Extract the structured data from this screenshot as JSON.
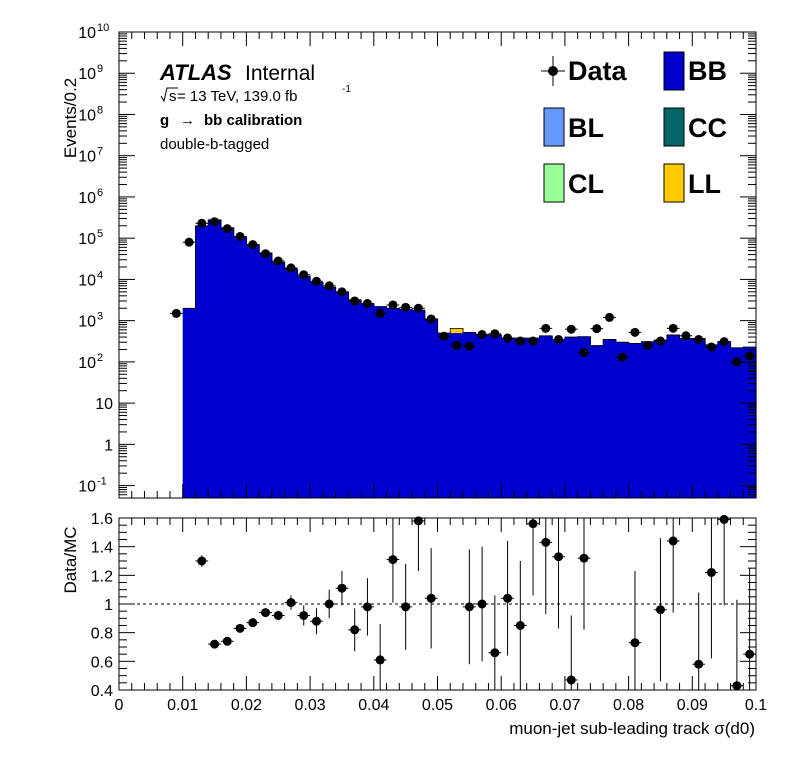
{
  "atlas": {
    "label": "ATLAS",
    "status": "Internal",
    "energy_sqrt": "s",
    "energy_text": " = 13 TeV, 139.0 fb",
    "energy_exp": "-1",
    "process_g": "g",
    "process_arrow": "→",
    "process_rest": "bb calibration",
    "selection": "double-b-tagged"
  },
  "colors": {
    "BB": "#0000cc",
    "BL": "#6699ff",
    "CC": "#006666",
    "CL": "#99ff99",
    "LL": "#ffcc00",
    "data": "#000000"
  },
  "chart_data": [
    {
      "type": "bar",
      "yscale": "log",
      "ylabel": "Events/0.2",
      "xlim": [
        0,
        0.1
      ],
      "ylim": [
        0.05,
        10000000000
      ],
      "y_tick_labels": [
        "10^-1",
        "1",
        "10",
        "10^2",
        "10^3",
        "10^4",
        "10^5",
        "10^6",
        "10^7",
        "10^8",
        "10^9",
        "10^10"
      ],
      "legend": {
        "placement": "top-right",
        "entries": [
          {
            "label": "Data",
            "style": "marker"
          },
          {
            "label": "BB",
            "style": "fill"
          },
          {
            "label": "BL",
            "style": "fill"
          },
          {
            "label": "CC",
            "style": "fill"
          },
          {
            "label": "CL",
            "style": "fill"
          },
          {
            "label": "LL",
            "style": "fill"
          }
        ]
      },
      "bin_width": 0.002,
      "x": [
        0.009,
        0.011,
        0.013,
        0.015,
        0.017,
        0.019,
        0.021,
        0.023,
        0.025,
        0.027,
        0.029,
        0.031,
        0.033,
        0.035,
        0.037,
        0.039,
        0.041,
        0.043,
        0.045,
        0.047,
        0.049,
        0.051,
        0.053,
        0.055,
        0.057,
        0.059,
        0.061,
        0.063,
        0.065,
        0.067,
        0.069,
        0.071,
        0.073,
        0.075,
        0.077,
        0.079,
        0.081,
        0.083,
        0.085,
        0.087,
        0.089,
        0.091,
        0.093,
        0.095,
        0.097,
        0.099
      ],
      "series": [
        {
          "name": "BB",
          "values": [
            0,
            2000,
            200000,
            280000,
            180000,
            110000,
            70000,
            44000,
            26000,
            18000,
            12000,
            8500,
            6500,
            5000,
            3200,
            2600,
            2200,
            2000,
            1900,
            1800,
            1100,
            500,
            500,
            520,
            460,
            450,
            370,
            380,
            380,
            430,
            350,
            400,
            410,
            250,
            350,
            300,
            280,
            310,
            340,
            450,
            370,
            370,
            260,
            310,
            220,
            230
          ]
        },
        {
          "name": "LL",
          "values": [
            0,
            0,
            0,
            0,
            0,
            0,
            0,
            0,
            0,
            0,
            0,
            0,
            0,
            0,
            0,
            0,
            0,
            0,
            0,
            0,
            0,
            0,
            150,
            0,
            0,
            0,
            0,
            0,
            0,
            0,
            0,
            0,
            0,
            0,
            0,
            0,
            0,
            0,
            0,
            0,
            0,
            0,
            0,
            0,
            0,
            0
          ]
        },
        {
          "name": "Data",
          "values": [
            1500,
            80000,
            230000,
            250000,
            170000,
            110000,
            70000,
            42000,
            28000,
            19000,
            13000,
            9000,
            7000,
            5000,
            3000,
            2600,
            1500,
            2400,
            2100,
            2000,
            1100,
            420,
            250,
            240,
            460,
            480,
            380,
            320,
            320,
            650,
            350,
            620,
            170,
            640,
            1200,
            130,
            520,
            250,
            320,
            650,
            430,
            350,
            230,
            310,
            100,
            140
          ]
        }
      ]
    },
    {
      "type": "scatter",
      "ylabel": "Data/MC",
      "xlabel": "muon-jet sub-leading track σ(d0)",
      "xlim": [
        0,
        0.1
      ],
      "ylim": [
        0.4,
        1.6
      ],
      "x_tick_labels": [
        "0",
        "0.01",
        "0.02",
        "0.03",
        "0.04",
        "0.05",
        "0.06",
        "0.07",
        "0.08",
        "0.09",
        "0.1"
      ],
      "y_tick_labels": [
        "0.4",
        "0.6",
        "0.8",
        "1",
        "1.2",
        "1.4",
        "1.6"
      ],
      "reference_line": 1,
      "x": [
        0.013,
        0.015,
        0.017,
        0.019,
        0.021,
        0.023,
        0.025,
        0.027,
        0.029,
        0.031,
        0.033,
        0.035,
        0.037,
        0.039,
        0.041,
        0.043,
        0.045,
        0.047,
        0.049,
        0.055,
        0.057,
        0.059,
        0.061,
        0.063,
        0.065,
        0.067,
        0.069,
        0.071,
        0.073,
        0.081,
        0.085,
        0.087,
        0.091,
        0.093,
        0.095,
        0.097,
        0.099
      ],
      "values": [
        1.3,
        0.72,
        0.74,
        0.83,
        0.87,
        0.94,
        0.92,
        1.01,
        0.92,
        0.88,
        1.0,
        1.11,
        0.82,
        0.98,
        0.61,
        1.31,
        0.98,
        1.58,
        1.04,
        0.98,
        1.0,
        0.66,
        1.04,
        0.85,
        1.56,
        1.43,
        1.33,
        0.47,
        1.32,
        0.73,
        0.96,
        1.44,
        0.58,
        1.22,
        1.59,
        0.43,
        0.65
      ],
      "errors": [
        0.04,
        0.02,
        0.02,
        0.02,
        0.02,
        0.03,
        0.03,
        0.05,
        0.07,
        0.09,
        0.1,
        0.12,
        0.15,
        0.2,
        0.25,
        0.3,
        0.3,
        0.35,
        0.35,
        0.4,
        0.4,
        0.4,
        0.4,
        0.45,
        0.5,
        0.5,
        0.5,
        0.45,
        0.5,
        0.5,
        0.5,
        0.5,
        0.5,
        0.6,
        0.6,
        0.6,
        0.6
      ]
    }
  ]
}
